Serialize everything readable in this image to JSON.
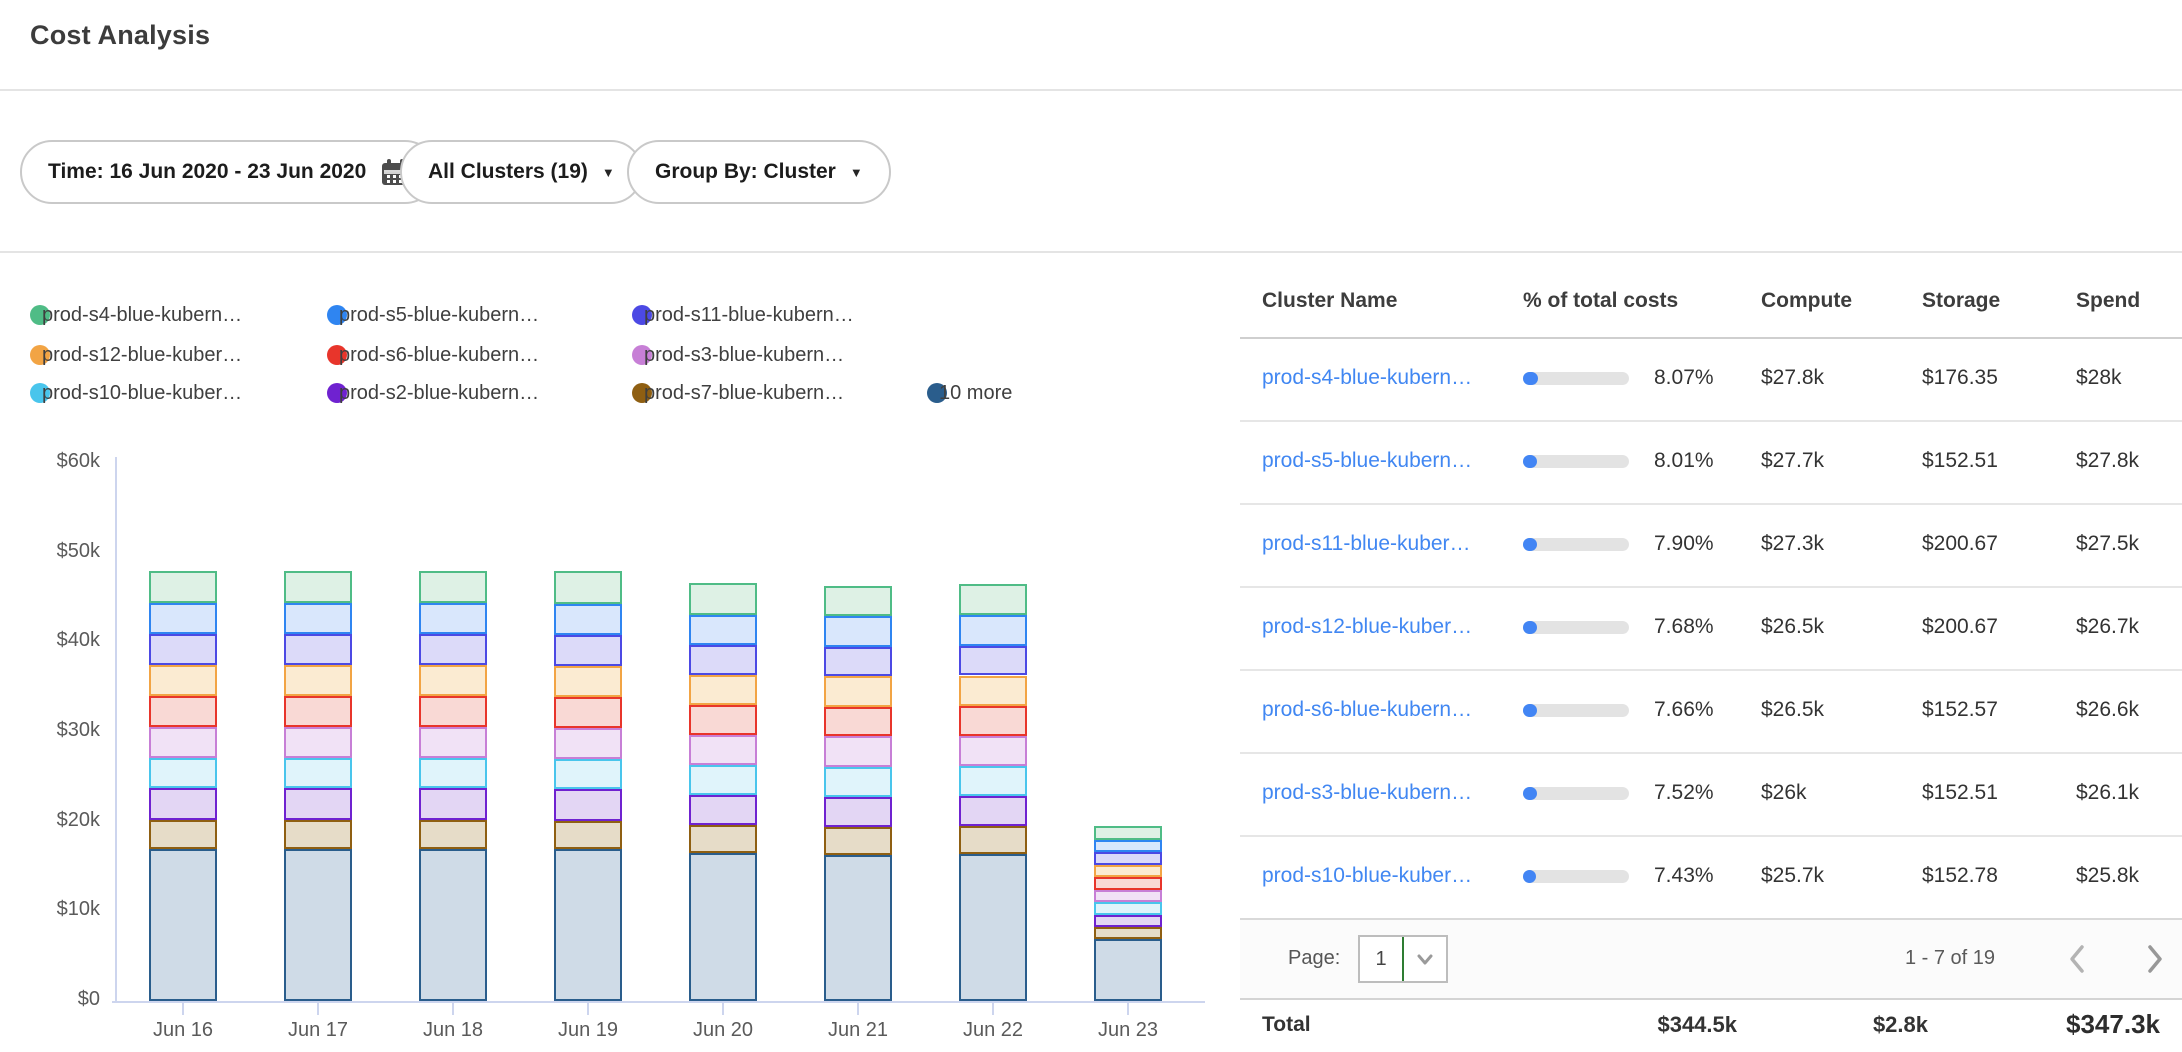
{
  "header": {
    "title": "Cost Analysis"
  },
  "filters": {
    "time": {
      "label": "Time: 16 Jun 2020 - 23 Jun 2020"
    },
    "clusters": {
      "label": "All Clusters (19)"
    },
    "group_by": {
      "label": "Group By: Cluster"
    }
  },
  "chart_data": {
    "type": "bar",
    "stacked": true,
    "title": "",
    "xlabel": "",
    "ylabel": "",
    "unit": "$k",
    "ylim": [
      0,
      60
    ],
    "grid": false,
    "legend_position": "top",
    "categories": [
      "Jun 16",
      "Jun 17",
      "Jun 18",
      "Jun 19",
      "Jun 20",
      "Jun 21",
      "Jun 22",
      "Jun 23"
    ],
    "yticks": [
      "$60k",
      "$50k",
      "$40k",
      "$30k",
      "$20k",
      "$10k",
      "$0"
    ],
    "series_bottom_up": [
      {
        "name": "10 more",
        "color": "#2a5d8c",
        "fill": "#cfdbe7",
        "values": [
          17.0,
          17.0,
          17.0,
          16.9,
          16.5,
          16.3,
          16.4,
          6.9
        ]
      },
      {
        "name": "prod-s7-blue-kubern…",
        "color": "#8f5f12",
        "fill": "#e6dcc8",
        "values": [
          3.2,
          3.2,
          3.2,
          3.2,
          3.1,
          3.1,
          3.1,
          1.3
        ]
      },
      {
        "name": "prod-s2-blue-kubern…",
        "color": "#6f22d0",
        "fill": "#e3d6f4",
        "values": [
          3.5,
          3.5,
          3.5,
          3.5,
          3.4,
          3.4,
          3.4,
          1.4
        ]
      },
      {
        "name": "prod-s10-blue-kuber…",
        "color": "#49c5ec",
        "fill": "#e0f4fb",
        "values": [
          3.4,
          3.4,
          3.4,
          3.4,
          3.3,
          3.3,
          3.3,
          1.4
        ]
      },
      {
        "name": "prod-s3-blue-kubern…",
        "color": "#c77fd6",
        "fill": "#f1e2f6",
        "values": [
          3.5,
          3.5,
          3.5,
          3.5,
          3.4,
          3.4,
          3.4,
          1.4
        ]
      },
      {
        "name": "prod-s6-blue-kubern…",
        "color": "#e8352b",
        "fill": "#f9d9d5",
        "values": [
          3.4,
          3.4,
          3.4,
          3.4,
          3.3,
          3.3,
          3.3,
          1.4
        ]
      },
      {
        "name": "prod-s12-blue-kuber…",
        "color": "#f2a444",
        "fill": "#fbebd2",
        "values": [
          3.5,
          3.5,
          3.5,
          3.5,
          3.4,
          3.4,
          3.4,
          1.4
        ]
      },
      {
        "name": "prod-s11-blue-kubern…",
        "color": "#4c49e4",
        "fill": "#dcdaf9",
        "values": [
          3.4,
          3.4,
          3.4,
          3.4,
          3.3,
          3.3,
          3.3,
          1.4
        ]
      },
      {
        "name": "prod-s5-blue-kubern…",
        "color": "#2f85f1",
        "fill": "#d9e7fc",
        "values": [
          3.5,
          3.5,
          3.5,
          3.5,
          3.4,
          3.4,
          3.4,
          1.4
        ]
      },
      {
        "name": "prod-s4-blue-kubern…",
        "color": "#4fbc86",
        "fill": "#def1e5",
        "values": [
          3.6,
          3.6,
          3.6,
          3.6,
          3.5,
          3.4,
          3.5,
          1.5
        ]
      }
    ]
  },
  "table": {
    "columns": [
      "Cluster Name",
      "% of total costs",
      "Compute",
      "Storage",
      "Spend"
    ],
    "rows": [
      {
        "name": "prod-s4-blue-kubern…",
        "pct": "8.07%",
        "pct_value": 8.07,
        "compute": "$27.8k",
        "storage": "$176.35",
        "spend": "$28k"
      },
      {
        "name": "prod-s5-blue-kubern…",
        "pct": "8.01%",
        "pct_value": 8.01,
        "compute": "$27.7k",
        "storage": "$152.51",
        "spend": "$27.8k"
      },
      {
        "name": "prod-s11-blue-kuber…",
        "pct": "7.90%",
        "pct_value": 7.9,
        "compute": "$27.3k",
        "storage": "$200.67",
        "spend": "$27.5k"
      },
      {
        "name": "prod-s12-blue-kuber…",
        "pct": "7.68%",
        "pct_value": 7.68,
        "compute": "$26.5k",
        "storage": "$200.67",
        "spend": "$26.7k"
      },
      {
        "name": "prod-s6-blue-kubern…",
        "pct": "7.66%",
        "pct_value": 7.66,
        "compute": "$26.5k",
        "storage": "$152.57",
        "spend": "$26.6k"
      },
      {
        "name": "prod-s3-blue-kubern…",
        "pct": "7.52%",
        "pct_value": 7.52,
        "compute": "$26k",
        "storage": "$152.51",
        "spend": "$26.1k"
      },
      {
        "name": "prod-s10-blue-kuber…",
        "pct": "7.43%",
        "pct_value": 7.43,
        "compute": "$25.7k",
        "storage": "$152.78",
        "spend": "$25.8k"
      }
    ],
    "pagination": {
      "page_label": "Page:",
      "page": "1",
      "range": "1 - 7 of 19"
    },
    "total": {
      "label": "Total",
      "compute": "$344.5k",
      "storage": "$2.8k",
      "spend": "$347.3k"
    }
  },
  "colors": {
    "link": "#4187f2",
    "progress_fill": "#4285f4",
    "progress_track": "#e3e3e3",
    "axis": "#cdd5ee",
    "select_cursor": "#2e7d32"
  }
}
